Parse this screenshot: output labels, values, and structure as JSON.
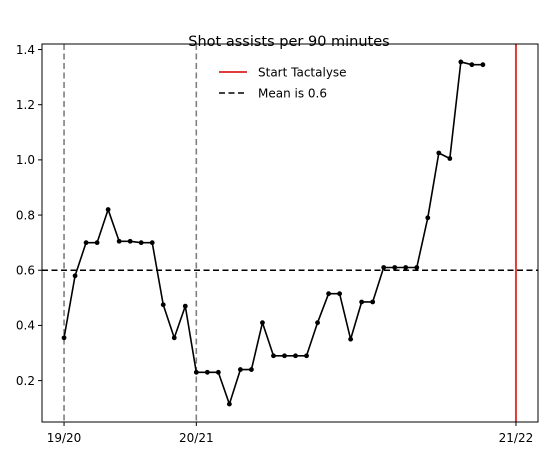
{
  "chart_data": {
    "type": "line",
    "title": "Shot assists per 90 minutes",
    "xlabel": "",
    "ylabel": "",
    "ylim": [
      0.05,
      1.42
    ],
    "yticks": [
      0.2,
      0.4,
      0.6,
      0.8,
      1.0,
      1.2,
      1.4
    ],
    "xtick_labels": [
      "19/20",
      "20/21",
      "21/22"
    ],
    "xtick_positions": [
      0,
      12,
      41
    ],
    "xlim": [
      -2,
      43
    ],
    "grid": false,
    "legend_position": "top-center",
    "series": [
      {
        "name": "",
        "color": "#000000",
        "x": [
          0,
          1,
          2,
          3,
          4,
          5,
          6,
          7,
          8,
          9,
          10,
          11,
          12,
          13,
          14,
          15,
          16,
          17,
          18,
          19,
          20,
          21,
          22,
          23,
          24,
          25,
          26,
          27,
          28,
          29,
          30,
          31,
          32,
          33,
          34,
          35,
          36,
          37,
          38
        ],
        "values": [
          0.355,
          0.58,
          0.7,
          0.7,
          0.82,
          0.705,
          0.705,
          0.7,
          0.7,
          0.475,
          0.355,
          0.47,
          0.23,
          0.23,
          0.23,
          0.115,
          0.24,
          0.24,
          0.41,
          0.29,
          0.29,
          0.29,
          0.29,
          0.41,
          0.515,
          0.515,
          0.35,
          0.485,
          0.485,
          0.61,
          0.61,
          0.61,
          0.61,
          0.79,
          1.025,
          1.005,
          1.355,
          1.345,
          1.345
        ]
      }
    ],
    "reference_lines": [
      {
        "name": "Start Tactalyse",
        "orientation": "vertical",
        "value": 41,
        "color": "#e03c3c",
        "style": "solid"
      },
      {
        "name": "Mean is 0.6",
        "orientation": "horizontal",
        "value": 0.6,
        "color": "#000000",
        "style": "dashed"
      }
    ],
    "season_markers": [
      0,
      12
    ],
    "legend": [
      {
        "label": "Start Tactalyse",
        "color": "#e03c3c",
        "style": "solid"
      },
      {
        "label": "Mean is 0.6",
        "color": "#000000",
        "style": "dashed"
      }
    ]
  }
}
